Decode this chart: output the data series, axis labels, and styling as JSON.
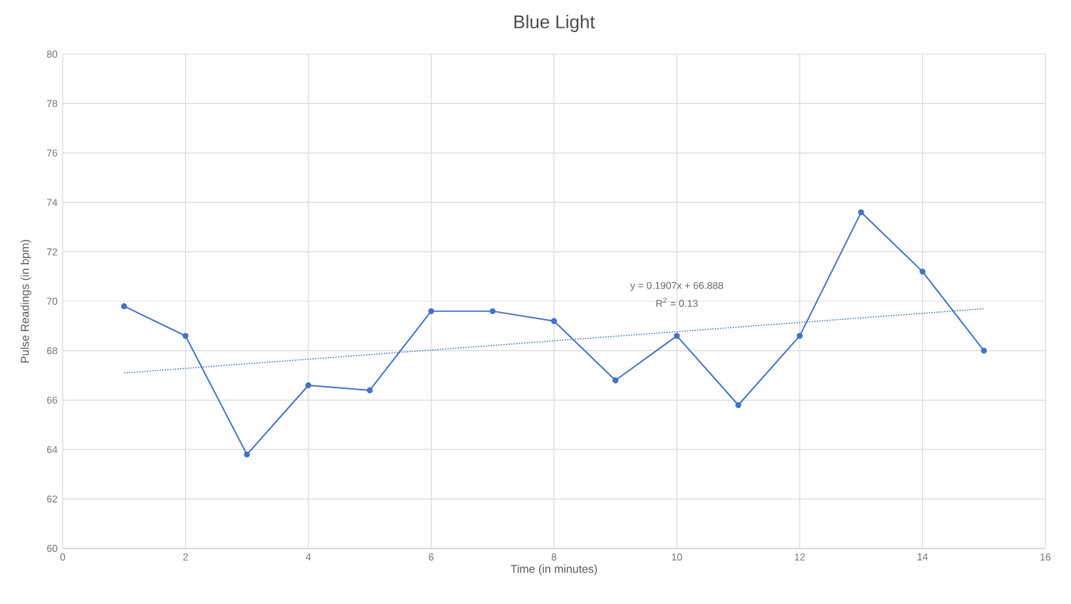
{
  "chart_data": {
    "type": "line",
    "title": "Blue Light",
    "xlabel": "Time (in minutes)",
    "ylabel": "Pulse Readings (in bpm)",
    "x": [
      1,
      2,
      3,
      4,
      5,
      6,
      7,
      8,
      9,
      10,
      11,
      12,
      13,
      14,
      15
    ],
    "series": [
      {
        "color": "#4472c4",
        "marker": "circle",
        "line_style": "solid",
        "values": [
          69.8,
          68.6,
          63.8,
          66.6,
          66.4,
          69.6,
          69.6,
          69.2,
          66.8,
          68.6,
          65.8,
          68.6,
          73.6,
          71.2,
          68.0
        ]
      },
      {
        "type": "line",
        "color": "#4472c4",
        "marker": "none",
        "line_style": "dotted",
        "x": [
          1,
          15
        ],
        "values": [
          67.1,
          69.7
        ]
      }
    ],
    "annotations": [
      "y = 0.1907x + 66.888",
      "R$^{2}$ = 0.13"
    ],
    "xlim": [
      0,
      16
    ],
    "xticks": [
      0,
      2,
      4,
      6,
      8,
      10,
      12,
      14,
      16
    ],
    "ylim": [
      60,
      80
    ],
    "yticks": [
      60,
      62,
      64,
      66,
      68,
      70,
      72,
      74,
      76,
      78,
      80
    ],
    "grid": true
  }
}
